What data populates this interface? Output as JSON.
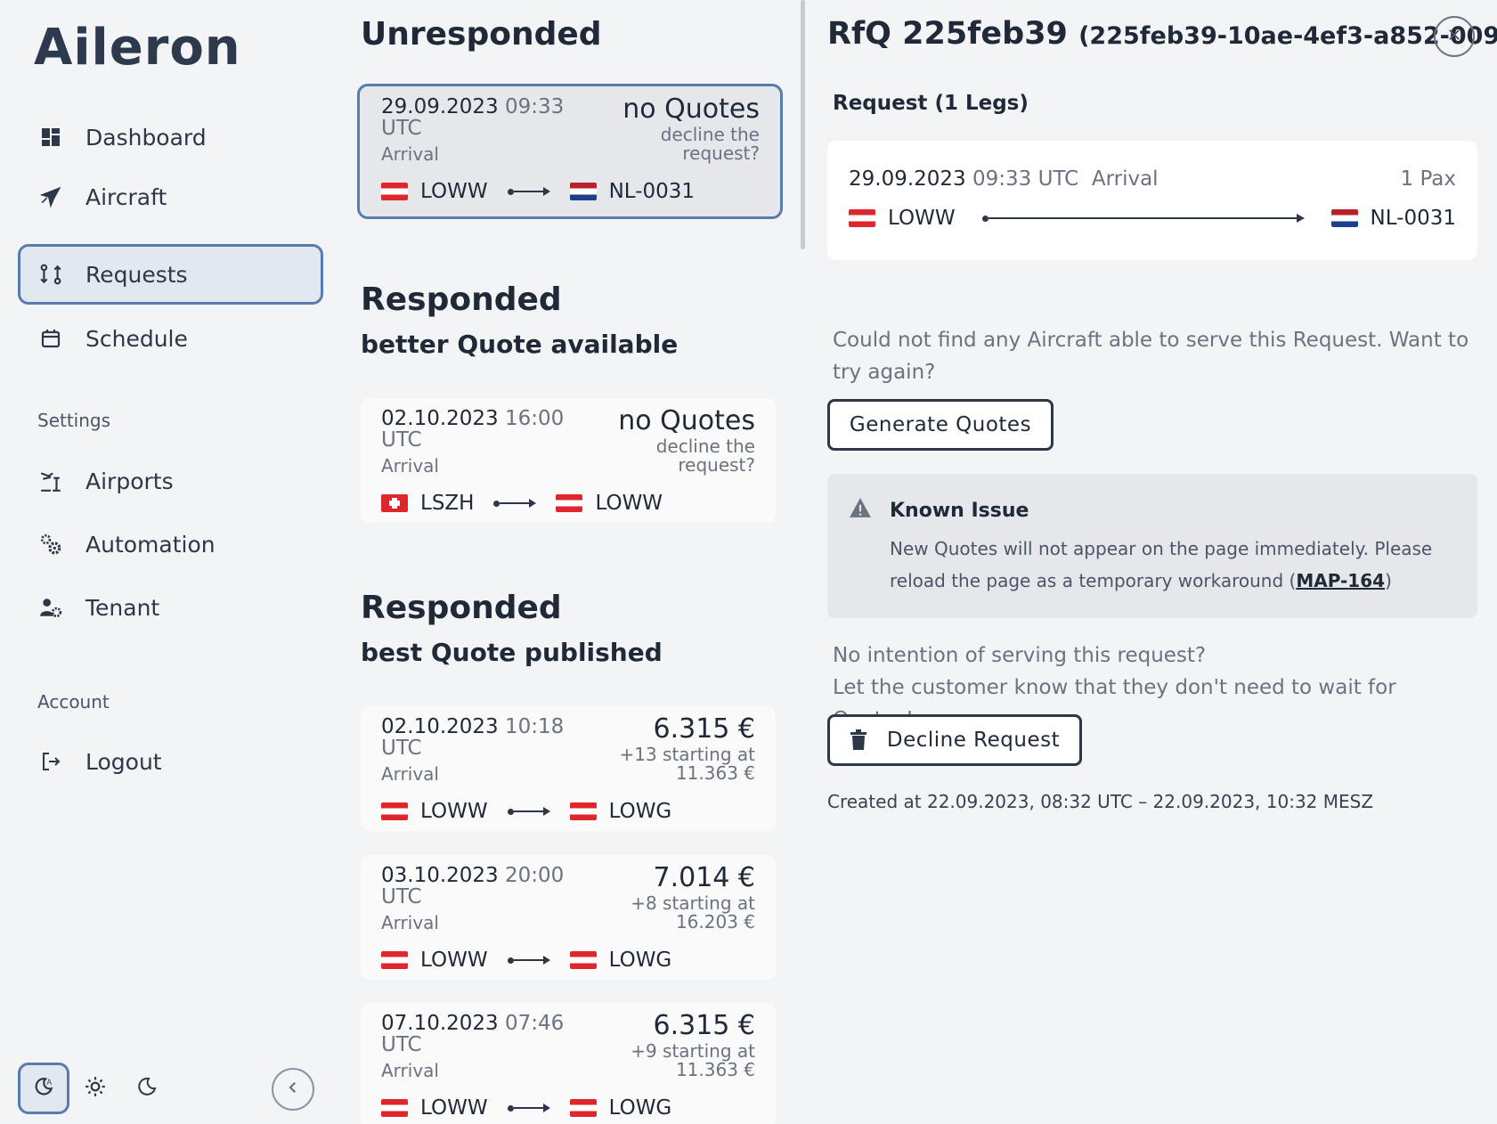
{
  "app": {
    "logo": "Aileron"
  },
  "sidebar": {
    "nav": [
      {
        "label": "Dashboard",
        "icon": "dashboard-icon"
      },
      {
        "label": "Aircraft",
        "icon": "plane-icon"
      },
      {
        "label": "Requests",
        "icon": "requests-icon",
        "active": true
      },
      {
        "label": "Schedule",
        "icon": "calendar-icon"
      }
    ],
    "settings_label": "Settings",
    "settings": [
      {
        "label": "Airports",
        "icon": "airport-icon"
      },
      {
        "label": "Automation",
        "icon": "gears-icon"
      },
      {
        "label": "Tenant",
        "icon": "tenant-icon"
      }
    ],
    "account_label": "Account",
    "account": [
      {
        "label": "Logout",
        "icon": "logout-icon"
      }
    ],
    "theme_modes": [
      "auto-theme-icon",
      "sun-icon",
      "moon-icon"
    ]
  },
  "requests": {
    "unresponded": {
      "title": "Unresponded",
      "cards": [
        {
          "date": "29.09.2023",
          "time": "09:33",
          "tz": "UTC",
          "type": "Arrival",
          "price": "no Quotes",
          "note": "decline the request?",
          "from": "LOWW",
          "from_flag": "at",
          "to": "NL-0031",
          "to_flag": "nl",
          "selected": true
        }
      ]
    },
    "better": {
      "title": "Responded",
      "subtitle": "better Quote available",
      "cards": [
        {
          "date": "02.10.2023",
          "time": "16:00",
          "tz": "UTC",
          "type": "Arrival",
          "price": "no Quotes",
          "note": "decline the request?",
          "from": "LSZH",
          "from_flag": "ch",
          "to": "LOWW",
          "to_flag": "at"
        }
      ]
    },
    "best": {
      "title": "Responded",
      "subtitle": "best Quote published",
      "cards": [
        {
          "date": "02.10.2023",
          "time": "10:18",
          "tz": "UTC",
          "type": "Arrival",
          "price": "6.315 €",
          "note": "+13 starting at 11.363 €",
          "from": "LOWW",
          "from_flag": "at",
          "to": "LOWG",
          "to_flag": "at"
        },
        {
          "date": "03.10.2023",
          "time": "20:00",
          "tz": "UTC",
          "type": "Arrival",
          "price": "7.014 €",
          "note": "+8 starting at 16.203 €",
          "from": "LOWW",
          "from_flag": "at",
          "to": "LOWG",
          "to_flag": "at"
        },
        {
          "date": "07.10.2023",
          "time": "07:46",
          "tz": "UTC",
          "type": "Arrival",
          "price": "6.315 €",
          "note": "+9 starting at 11.363 €",
          "from": "LOWW",
          "from_flag": "at",
          "to": "LOWG",
          "to_flag": "at"
        }
      ]
    }
  },
  "detail": {
    "title": "RfQ 225feb39",
    "title_id": "(225feb39-10ae-4ef3-a852-009…",
    "request_label": "Request (1 Legs)",
    "leg": {
      "date": "29.09.2023",
      "time": "09:33 UTC",
      "type": "Arrival",
      "pax": "1 Pax",
      "from": "LOWW",
      "to": "NL-0031"
    },
    "no_aircraft_text": "Could not find any Aircraft able to serve this Request. Want to try again?",
    "generate_label": "Generate Quotes",
    "issue": {
      "title": "Known Issue",
      "body": "New Quotes will not appear on the page immediately. Please reload the page as a temporary workaround (",
      "link": "MAP-164",
      "body_end": ")"
    },
    "decline_prompt_1": "No intention of serving this request?",
    "decline_prompt_2": "Let the customer know that they don't need to wait for Quotes!",
    "decline_label": "Decline Request",
    "created": "Created at 22.09.2023, 08:32 UTC  –  22.09.2023, 10:32 MESZ"
  }
}
